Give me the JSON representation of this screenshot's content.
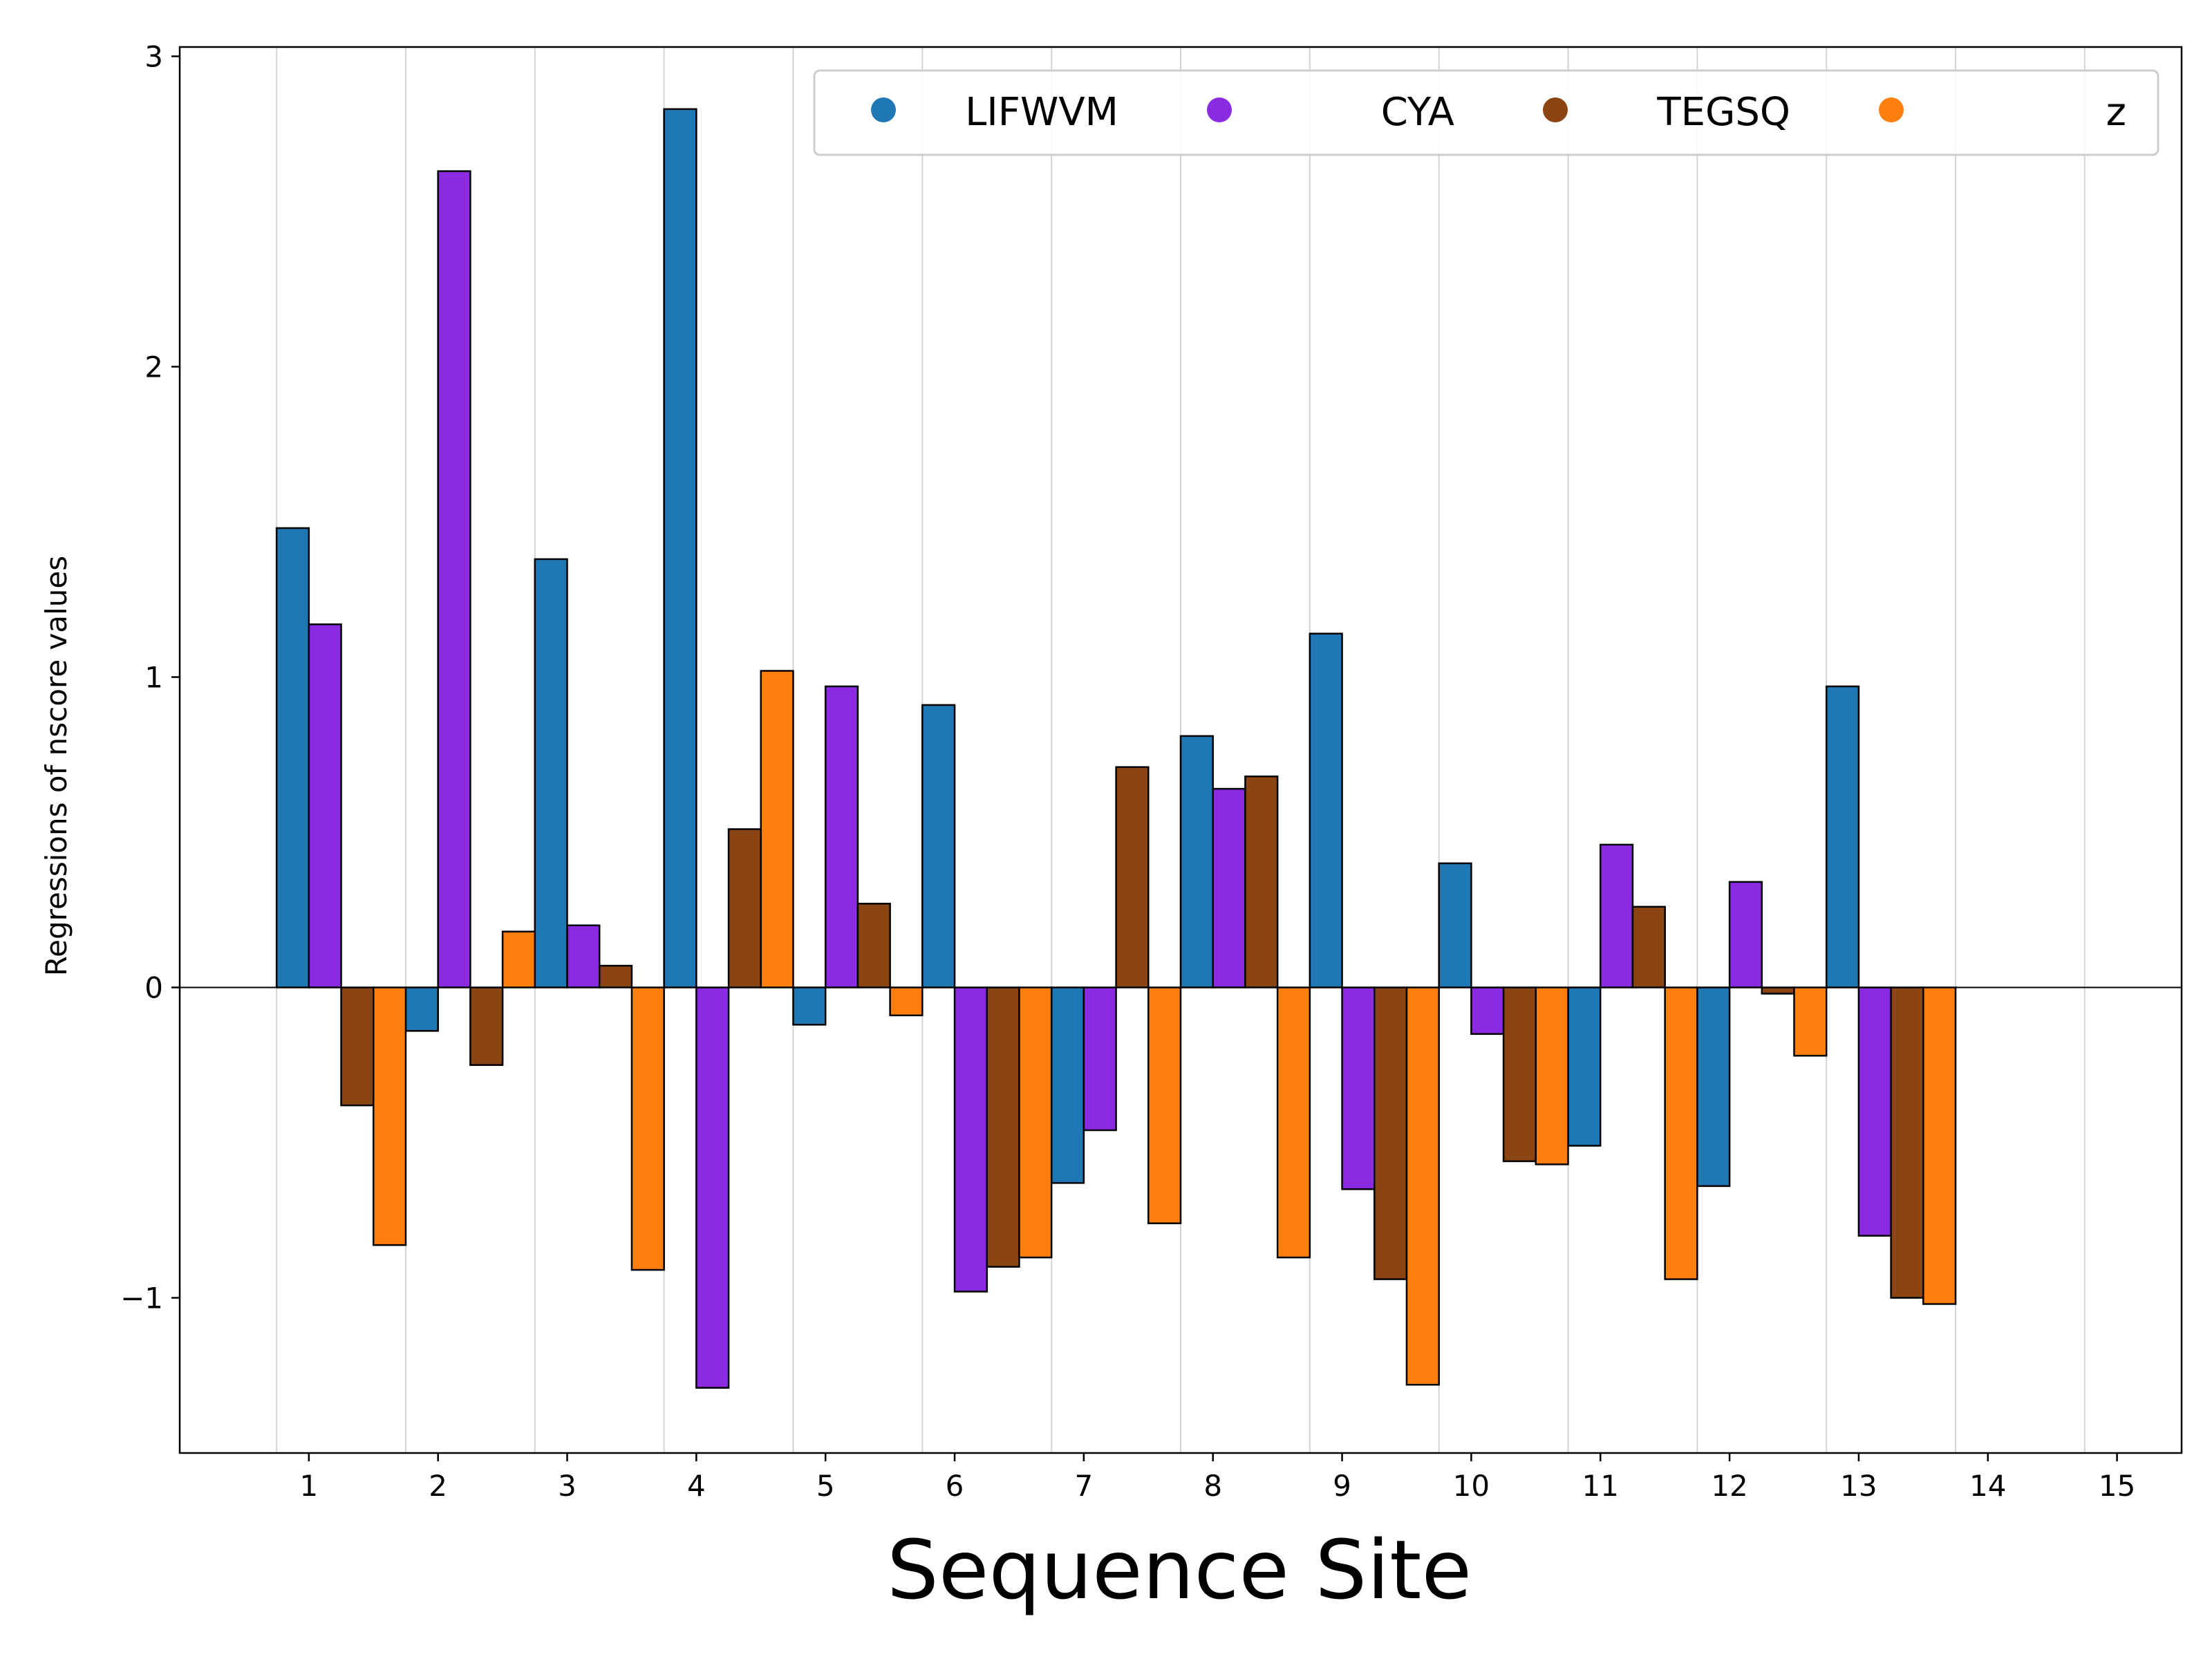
{
  "chart_data": {
    "type": "bar",
    "title": "",
    "xlabel": "Sequence Site",
    "ylabel": "Regressions of nscore values",
    "categories": [
      "1",
      "2",
      "3",
      "4",
      "5",
      "6",
      "7",
      "8",
      "9",
      "10",
      "11",
      "12",
      "13",
      "14",
      "15"
    ],
    "yticks": [
      -1,
      0,
      1,
      2,
      3
    ],
    "ytick_labels": [
      "−1",
      "0",
      "1",
      "2",
      "3"
    ],
    "ylim": [
      -1.5,
      3.03
    ],
    "grid": "vertical",
    "legend_position": "top-right",
    "series": [
      {
        "name": "LIFWVM",
        "color": "#1f77b4",
        "values": [
          1.48,
          -0.14,
          1.38,
          2.83,
          -0.12,
          0.91,
          -0.63,
          0.81,
          1.14,
          0.4,
          -0.51,
          -0.64,
          0.97,
          null,
          null
        ]
      },
      {
        "name": "CYA",
        "color": "#8a2be2",
        "values": [
          1.17,
          2.63,
          0.2,
          -1.29,
          0.97,
          -0.98,
          -0.46,
          0.64,
          -0.65,
          -0.15,
          0.46,
          0.34,
          -0.8,
          null,
          null
        ]
      },
      {
        "name": "TEGSQ",
        "color": "#8b4513",
        "values": [
          -0.38,
          -0.25,
          0.07,
          0.51,
          0.27,
          -0.9,
          0.71,
          0.68,
          -0.94,
          -0.56,
          0.26,
          -0.02,
          -1.0,
          null,
          null
        ]
      },
      {
        "name": "z",
        "color": "#ff7f0e",
        "values": [
          -0.83,
          0.18,
          -0.91,
          1.02,
          -0.09,
          -0.87,
          -0.76,
          -0.87,
          -1.28,
          -0.57,
          -0.94,
          -0.22,
          -1.02,
          null,
          null
        ]
      }
    ]
  }
}
